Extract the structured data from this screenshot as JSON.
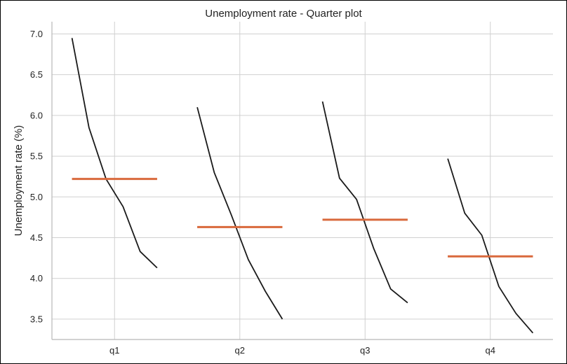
{
  "chart_data": {
    "type": "line",
    "title": "Unemployment rate - Quarter plot",
    "xlabel": "",
    "ylabel": "Unemployment rate (%)",
    "ylim": [
      3.25,
      7.15
    ],
    "yticks": [
      "3.5",
      "4.0",
      "4.5",
      "5.0",
      "5.5",
      "6.0",
      "6.5",
      "7.0"
    ],
    "ytick_values": [
      3.5,
      4.0,
      4.5,
      5.0,
      5.5,
      6.0,
      6.5,
      7.0
    ],
    "categories": [
      "q1",
      "q2",
      "q3",
      "q4"
    ],
    "grid": true,
    "colors": {
      "line": "#1a1a1a",
      "mean": "#d9693c",
      "grid": "#d0d0d0",
      "axis": "#b8b8b8"
    },
    "quarters": [
      {
        "name": "q1",
        "values": [
          6.95,
          5.85,
          5.22,
          4.88,
          4.33,
          4.13
        ],
        "mean": 5.22
      },
      {
        "name": "q2",
        "values": [
          6.1,
          5.3,
          4.78,
          4.23,
          3.84,
          3.5
        ],
        "mean": 4.63
      },
      {
        "name": "q3",
        "values": [
          6.17,
          5.23,
          4.97,
          4.37,
          3.87,
          3.7
        ],
        "mean": 4.72
      },
      {
        "name": "q4",
        "values": [
          5.47,
          4.8,
          4.53,
          3.9,
          3.57,
          3.33
        ],
        "mean": 4.27
      }
    ]
  }
}
